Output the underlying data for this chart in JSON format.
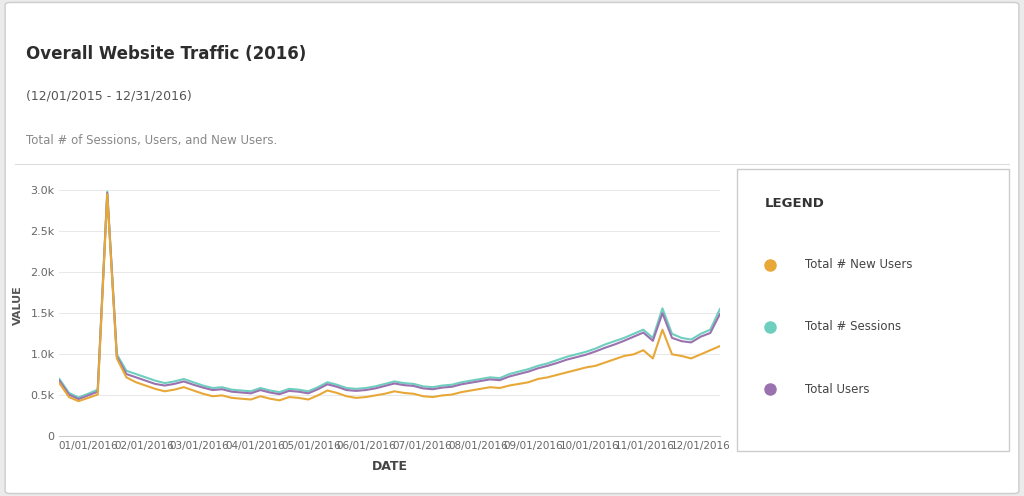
{
  "title": "Overall Website Traffic (2016)",
  "subtitle": "(12/01/2015 - 12/31/2016)",
  "description": "Total # of Sessions, Users, and New Users.",
  "xlabel": "DATE",
  "ylabel": "VALUE",
  "page_bg_color": "#ebebeb",
  "card_bg_color": "#ffffff",
  "plot_bg_color": "#ffffff",
  "legend_title": "LEGEND",
  "series": {
    "new_users": {
      "label": "Total # New Users",
      "color": "#e8a838"
    },
    "sessions": {
      "label": "Total # Sessions",
      "color": "#6ecfbf"
    },
    "users": {
      "label": "Total Users",
      "color": "#9b72b0"
    }
  },
  "x_tick_labels": [
    "01/01/2016",
    "02/01/2016",
    "03/01/2016",
    "04/01/2016",
    "05/01/2016",
    "06/01/2016",
    "07/01/2016",
    "08/01/2016",
    "09/01/2016",
    "10/01/2016",
    "11/01/2016",
    "12/01/2016"
  ],
  "ylim": [
    0,
    3200
  ],
  "yticks": [
    0,
    500,
    1000,
    1500,
    2000,
    2500,
    3000
  ],
  "ytick_labels": [
    "0",
    "0.5k",
    "1.0k",
    "1.5k",
    "2.0k",
    "2.5k",
    "3.0k"
  ],
  "new_users": [
    650,
    480,
    430,
    470,
    510,
    2950,
    950,
    720,
    660,
    620,
    580,
    550,
    570,
    600,
    560,
    520,
    490,
    500,
    470,
    460,
    450,
    490,
    460,
    440,
    480,
    470,
    450,
    500,
    560,
    530,
    490,
    470,
    480,
    500,
    520,
    550,
    530,
    520,
    490,
    480,
    500,
    510,
    540,
    560,
    580,
    600,
    590,
    620,
    640,
    660,
    700,
    720,
    750,
    780,
    810,
    840,
    860,
    900,
    940,
    980,
    1000,
    1050,
    950,
    1300,
    1000,
    980,
    950,
    1000,
    1050,
    1100
  ],
  "sessions": [
    700,
    530,
    475,
    520,
    570,
    2980,
    1000,
    800,
    760,
    720,
    680,
    650,
    670,
    700,
    660,
    620,
    590,
    600,
    570,
    560,
    550,
    590,
    560,
    540,
    580,
    570,
    550,
    600,
    660,
    630,
    590,
    580,
    590,
    610,
    640,
    670,
    650,
    640,
    610,
    600,
    620,
    630,
    660,
    680,
    700,
    720,
    710,
    760,
    790,
    820,
    860,
    890,
    930,
    970,
    1000,
    1030,
    1070,
    1120,
    1160,
    1200,
    1250,
    1300,
    1200,
    1560,
    1250,
    1200,
    1180,
    1250,
    1300,
    1550
  ],
  "users": [
    680,
    510,
    455,
    500,
    545,
    2965,
    975,
    760,
    720,
    680,
    640,
    620,
    640,
    670,
    630,
    595,
    565,
    575,
    545,
    535,
    525,
    565,
    535,
    515,
    555,
    545,
    525,
    575,
    635,
    605,
    565,
    555,
    565,
    585,
    615,
    645,
    625,
    615,
    585,
    575,
    595,
    605,
    635,
    655,
    675,
    695,
    685,
    730,
    760,
    790,
    830,
    860,
    895,
    935,
    965,
    995,
    1035,
    1080,
    1120,
    1165,
    1215,
    1265,
    1165,
    1500,
    1200,
    1160,
    1145,
    1215,
    1260,
    1490
  ]
}
